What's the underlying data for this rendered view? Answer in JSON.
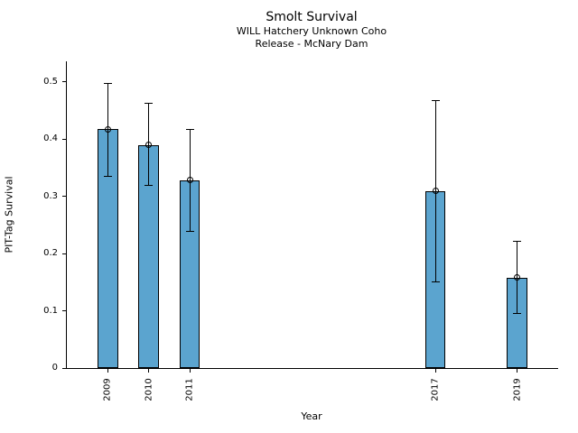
{
  "chart_data": {
    "type": "bar",
    "title": "Smolt Survival",
    "subtitle1": "WILL Hatchery Unknown Coho",
    "subtitle2": "Release - McNary Dam",
    "xlabel": "Year",
    "ylabel": "PIT-Tag Survival",
    "categories": [
      2009,
      2010,
      2011,
      2017,
      2019
    ],
    "values": [
      0.417,
      0.39,
      0.328,
      0.309,
      0.158
    ],
    "error_low": [
      0.334,
      0.318,
      0.238,
      0.15,
      0.094
    ],
    "error_high": [
      0.498,
      0.464,
      0.418,
      0.468,
      0.222
    ],
    "xlim": [
      2008,
      2020
    ],
    "ylim": [
      0,
      0.536
    ],
    "yticks": [
      0,
      0.1,
      0.2,
      0.3,
      0.4,
      0.5
    ],
    "ytick_labels": [
      "0",
      "0.1",
      "0.2",
      "0.3",
      "0.4",
      "0.5"
    ],
    "bar_width_years": 0.5,
    "bar_color": "#5BA4CF",
    "bar_edge_color": "#000000",
    "marker": "open-circle",
    "grid": false,
    "legend": "none"
  }
}
